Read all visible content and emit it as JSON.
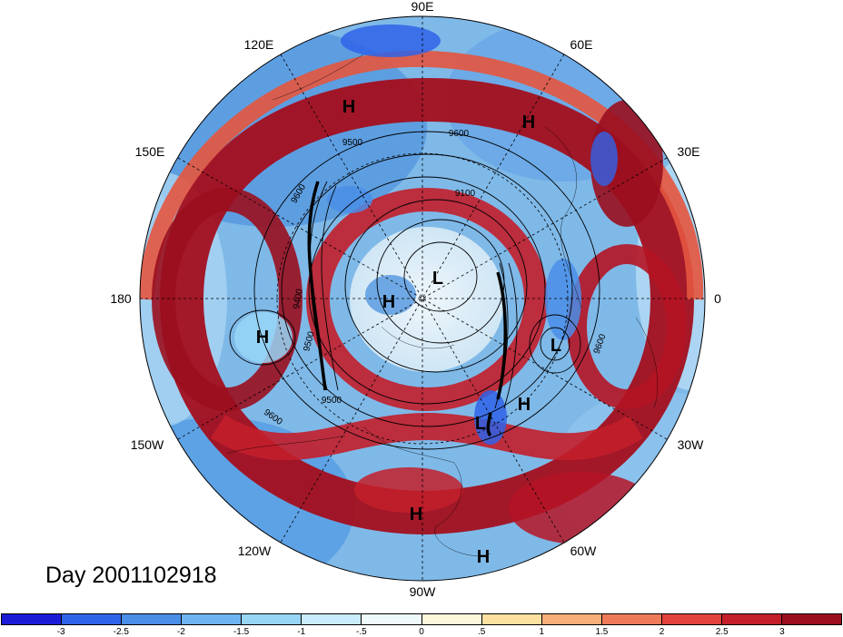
{
  "title": "Day 2001102918",
  "longitude_labels": [
    "90E",
    "60E",
    "30E",
    "0",
    "30W",
    "60W",
    "90W",
    "120W",
    "150W",
    "180",
    "150E",
    "120E"
  ],
  "centers": [
    {
      "mark": "H",
      "name": "high-center"
    },
    {
      "mark": "H",
      "name": "high-center"
    },
    {
      "mark": "H",
      "name": "high-center"
    },
    {
      "mark": "H",
      "name": "high-center"
    },
    {
      "mark": "H",
      "name": "high-center"
    },
    {
      "mark": "H",
      "name": "high-center"
    },
    {
      "mark": "H",
      "name": "high-center"
    },
    {
      "mark": "L",
      "name": "low-center"
    },
    {
      "mark": "L",
      "name": "low-center"
    },
    {
      "mark": "L",
      "name": "low-center"
    }
  ],
  "contour_labels": [
    "9600",
    "9500",
    "9100",
    "9400",
    "9500",
    "9600",
    "9600",
    "9500",
    "9600"
  ],
  "colorbar": {
    "colors": [
      "#1c1cd6",
      "#2f63e8",
      "#4a8ee8",
      "#6fb4f0",
      "#98d6f7",
      "#c8ecfb",
      "#eef9fb",
      "#fdf8dc",
      "#fbe0a0",
      "#f7ae78",
      "#ef7a5a",
      "#e2413c",
      "#c31e2a",
      "#9a0e1e"
    ],
    "ticks": [
      "-3",
      "-2.5",
      "-2",
      "-1.5",
      "-1",
      "-.5",
      "0",
      ".5",
      "1",
      "1.5",
      "2",
      "2.5",
      "3"
    ]
  }
}
